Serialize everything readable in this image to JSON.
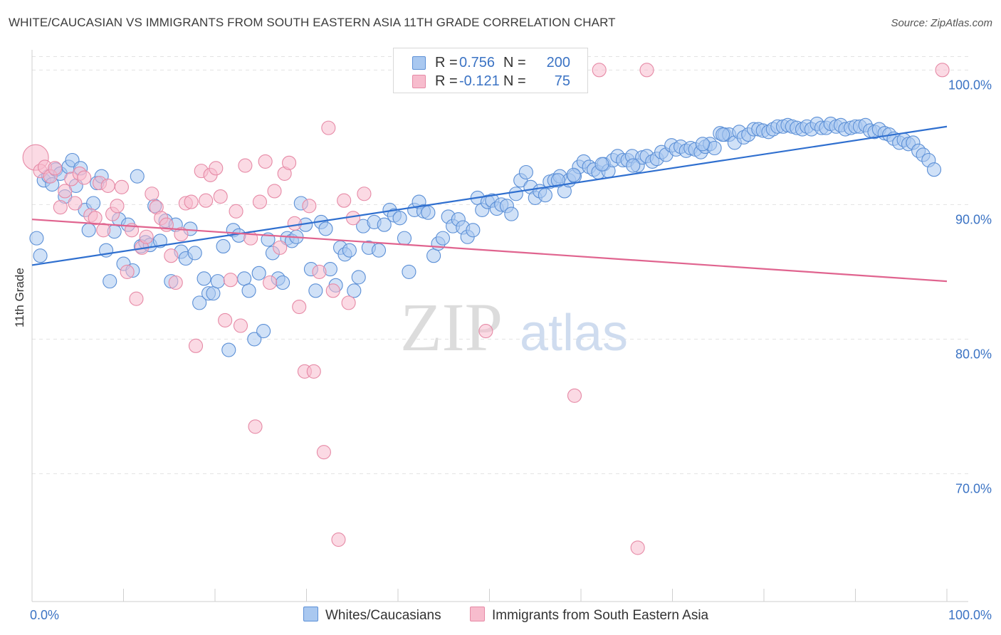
{
  "title": "WHITE/CAUCASIAN VS IMMIGRANTS FROM SOUTH EASTERN ASIA 11TH GRADE CORRELATION CHART",
  "source": "Source: ZipAtlas.com",
  "watermark": {
    "zip": "ZIP",
    "atlas": "atlas"
  },
  "legend": {
    "series": [
      {
        "r_label": "R =",
        "r_value": "0.756",
        "n_label": "N =",
        "n_value": "200",
        "color": "#a9c8f0",
        "edge": "#5b8fd6"
      },
      {
        "r_label": "R =",
        "r_value": "-0.121",
        "n_label": "N =",
        "n_value": "75",
        "color": "#f7bccd",
        "edge": "#e68aa6"
      }
    ]
  },
  "chart_data": {
    "type": "scatter",
    "title": "WHITE/CAUCASIAN VS IMMIGRANTS FROM SOUTH EASTERN ASIA 11TH GRADE CORRELATION CHART",
    "xlabel": "",
    "ylabel": "11th Grade",
    "xlim": [
      0,
      100
    ],
    "ylim": [
      60.5,
      101.5
    ],
    "x_tick_labels": [
      "0.0%",
      "100.0%"
    ],
    "y_ticks": [
      70,
      80,
      90,
      100
    ],
    "y_tick_labels": [
      "70.0%",
      "80.0%",
      "90.0%",
      "100.0%"
    ],
    "grid": true,
    "legend_position": "top-center",
    "series": [
      {
        "name": "Whites/Caucasians",
        "color": "#a9c8f0",
        "edge": "#5b8fd6",
        "line_color": "#2f6fcf",
        "trend": [
          [
            0,
            85.5
          ],
          [
            100,
            95.8
          ]
        ],
        "points": [
          [
            0.5,
            87.5
          ],
          [
            0.9,
            86.2
          ],
          [
            1.3,
            91.8
          ],
          [
            1.8,
            92.1
          ],
          [
            2.2,
            91.5
          ],
          [
            2.6,
            92.6
          ],
          [
            3.1,
            92.3
          ],
          [
            3.6,
            90.6
          ],
          [
            4.0,
            92.8
          ],
          [
            4.4,
            93.3
          ],
          [
            4.8,
            91.4
          ],
          [
            5.3,
            92.7
          ],
          [
            5.8,
            89.6
          ],
          [
            6.2,
            88.1
          ],
          [
            6.7,
            90.1
          ],
          [
            7.1,
            91.6
          ],
          [
            7.6,
            92.1
          ],
          [
            8.1,
            86.6
          ],
          [
            8.5,
            84.3
          ],
          [
            9.0,
            88.0
          ],
          [
            9.5,
            88.9
          ],
          [
            10.0,
            85.6
          ],
          [
            10.5,
            88.5
          ],
          [
            11.0,
            85.1
          ],
          [
            11.5,
            92.1
          ],
          [
            11.9,
            86.9
          ],
          [
            12.4,
            87.2
          ],
          [
            12.9,
            87.0
          ],
          [
            13.4,
            89.9
          ],
          [
            14.0,
            87.3
          ],
          [
            14.6,
            88.8
          ],
          [
            15.2,
            84.3
          ],
          [
            15.7,
            88.5
          ],
          [
            16.3,
            86.5
          ],
          [
            16.8,
            86.0
          ],
          [
            17.3,
            88.2
          ],
          [
            17.8,
            86.4
          ],
          [
            18.3,
            82.7
          ],
          [
            18.8,
            84.5
          ],
          [
            19.3,
            83.4
          ],
          [
            19.8,
            83.4
          ],
          [
            20.3,
            84.3
          ],
          [
            20.9,
            86.9
          ],
          [
            21.5,
            79.2
          ],
          [
            22.0,
            88.1
          ],
          [
            22.6,
            87.7
          ],
          [
            23.2,
            84.5
          ],
          [
            23.7,
            83.6
          ],
          [
            24.3,
            80.0
          ],
          [
            24.8,
            84.9
          ],
          [
            25.3,
            80.6
          ],
          [
            25.8,
            87.4
          ],
          [
            26.3,
            86.4
          ],
          [
            26.9,
            84.5
          ],
          [
            27.4,
            84.2
          ],
          [
            27.9,
            87.5
          ],
          [
            28.4,
            87.3
          ],
          [
            28.9,
            87.6
          ],
          [
            29.4,
            90.1
          ],
          [
            29.9,
            88.5
          ],
          [
            30.5,
            85.2
          ],
          [
            31.0,
            83.6
          ],
          [
            31.6,
            88.7
          ],
          [
            32.1,
            88.2
          ],
          [
            32.6,
            85.2
          ],
          [
            33.2,
            84.0
          ],
          [
            33.7,
            86.8
          ],
          [
            34.2,
            86.3
          ],
          [
            34.7,
            86.6
          ],
          [
            35.2,
            83.6
          ],
          [
            35.7,
            84.6
          ],
          [
            36.2,
            88.4
          ],
          [
            36.8,
            86.8
          ],
          [
            37.4,
            88.7
          ],
          [
            37.9,
            86.6
          ],
          [
            38.5,
            88.5
          ],
          [
            39.1,
            89.6
          ],
          [
            39.6,
            89.2
          ],
          [
            40.2,
            89.0
          ],
          [
            40.7,
            87.5
          ],
          [
            41.2,
            85.0
          ],
          [
            41.8,
            89.6
          ],
          [
            42.3,
            90.2
          ],
          [
            42.8,
            89.5
          ],
          [
            43.3,
            89.4
          ],
          [
            43.9,
            86.2
          ],
          [
            44.4,
            87.1
          ],
          [
            44.9,
            87.5
          ],
          [
            45.5,
            89.1
          ],
          [
            46.0,
            88.4
          ],
          [
            46.6,
            88.9
          ],
          [
            47.1,
            88.3
          ],
          [
            47.6,
            87.6
          ],
          [
            48.2,
            88.1
          ],
          [
            48.7,
            90.5
          ],
          [
            49.2,
            89.6
          ],
          [
            49.8,
            90.2
          ],
          [
            50.3,
            90.3
          ],
          [
            50.8,
            89.7
          ],
          [
            51.3,
            90.0
          ],
          [
            51.9,
            89.9
          ],
          [
            52.4,
            89.3
          ],
          [
            52.9,
            90.8
          ],
          [
            53.4,
            91.8
          ],
          [
            54.0,
            92.4
          ],
          [
            54.5,
            91.3
          ],
          [
            55.0,
            90.5
          ],
          [
            55.5,
            91.0
          ],
          [
            56.1,
            90.7
          ],
          [
            56.6,
            91.7
          ],
          [
            57.1,
            91.8
          ],
          [
            57.7,
            92.1
          ],
          [
            58.2,
            91.0
          ],
          [
            58.7,
            91.8
          ],
          [
            59.3,
            92.1
          ],
          [
            59.8,
            92.8
          ],
          [
            60.3,
            93.2
          ],
          [
            60.9,
            92.8
          ],
          [
            61.4,
            92.6
          ],
          [
            61.9,
            92.4
          ],
          [
            62.5,
            93.0
          ],
          [
            63.0,
            92.5
          ],
          [
            63.5,
            93.3
          ],
          [
            64.0,
            93.6
          ],
          [
            64.6,
            93.3
          ],
          [
            65.1,
            93.3
          ],
          [
            65.6,
            93.6
          ],
          [
            66.2,
            92.9
          ],
          [
            66.7,
            93.5
          ],
          [
            67.2,
            93.6
          ],
          [
            67.8,
            93.2
          ],
          [
            68.3,
            93.4
          ],
          [
            68.8,
            93.9
          ],
          [
            69.3,
            93.7
          ],
          [
            69.9,
            94.4
          ],
          [
            70.4,
            94.1
          ],
          [
            70.9,
            94.3
          ],
          [
            71.5,
            94.0
          ],
          [
            72.0,
            94.2
          ],
          [
            72.5,
            94.1
          ],
          [
            73.1,
            93.9
          ],
          [
            73.6,
            94.3
          ],
          [
            74.1,
            94.5
          ],
          [
            74.6,
            94.2
          ],
          [
            75.2,
            95.3
          ],
          [
            75.7,
            95.2
          ],
          [
            76.2,
            95.2
          ],
          [
            76.8,
            94.6
          ],
          [
            77.3,
            95.4
          ],
          [
            77.8,
            95.0
          ],
          [
            78.3,
            95.2
          ],
          [
            78.9,
            95.6
          ],
          [
            79.4,
            95.6
          ],
          [
            79.9,
            95.5
          ],
          [
            80.5,
            95.4
          ],
          [
            81.0,
            95.6
          ],
          [
            81.5,
            95.8
          ],
          [
            82.1,
            95.8
          ],
          [
            82.6,
            95.9
          ],
          [
            83.1,
            95.8
          ],
          [
            83.6,
            95.7
          ],
          [
            84.2,
            95.6
          ],
          [
            84.7,
            95.8
          ],
          [
            85.2,
            95.6
          ],
          [
            85.8,
            96.0
          ],
          [
            86.3,
            95.7
          ],
          [
            86.8,
            95.7
          ],
          [
            87.3,
            96.0
          ],
          [
            87.9,
            95.8
          ],
          [
            88.4,
            95.9
          ],
          [
            88.9,
            95.6
          ],
          [
            89.5,
            95.7
          ],
          [
            90.0,
            95.8
          ],
          [
            90.5,
            95.8
          ],
          [
            91.1,
            95.9
          ],
          [
            91.6,
            95.5
          ],
          [
            92.1,
            95.4
          ],
          [
            92.6,
            95.6
          ],
          [
            93.2,
            95.3
          ],
          [
            93.7,
            95.2
          ],
          [
            94.2,
            94.9
          ],
          [
            94.8,
            94.6
          ],
          [
            95.3,
            94.8
          ],
          [
            95.8,
            94.5
          ],
          [
            96.3,
            94.6
          ],
          [
            96.9,
            94.0
          ],
          [
            97.4,
            93.7
          ],
          [
            98.0,
            93.3
          ],
          [
            98.6,
            92.6
          ],
          [
            75.5,
            95.2
          ],
          [
            73.3,
            94.5
          ],
          [
            65.7,
            92.9
          ],
          [
            62.3,
            93.0
          ],
          [
            57.5,
            91.8
          ],
          [
            59.2,
            92.2
          ]
        ]
      },
      {
        "name": "Immigrants from South Eastern Asia",
        "color": "#f7bccd",
        "edge": "#e68aa6",
        "line_color": "#e0648f",
        "trend": [
          [
            0,
            88.9
          ],
          [
            100,
            84.3
          ]
        ],
        "points": [
          [
            0.4,
            93.5
          ],
          [
            0.9,
            92.5
          ],
          [
            1.4,
            92.8
          ],
          [
            2.0,
            92.1
          ],
          [
            2.5,
            92.7
          ],
          [
            3.1,
            89.8
          ],
          [
            3.6,
            91.0
          ],
          [
            4.3,
            91.9
          ],
          [
            4.7,
            90.1
          ],
          [
            5.2,
            92.3
          ],
          [
            5.7,
            92.0
          ],
          [
            6.4,
            89.2
          ],
          [
            6.9,
            89.0
          ],
          [
            7.4,
            91.6
          ],
          [
            7.8,
            88.1
          ],
          [
            8.3,
            91.4
          ],
          [
            8.8,
            89.3
          ],
          [
            9.3,
            89.9
          ],
          [
            9.8,
            91.3
          ],
          [
            10.4,
            85.0
          ],
          [
            10.9,
            88.1
          ],
          [
            11.4,
            83.0
          ],
          [
            12.0,
            86.8
          ],
          [
            12.5,
            87.6
          ],
          [
            13.1,
            90.8
          ],
          [
            13.6,
            89.8
          ],
          [
            14.1,
            89.0
          ],
          [
            14.7,
            88.5
          ],
          [
            15.2,
            86.2
          ],
          [
            15.7,
            84.2
          ],
          [
            16.3,
            87.8
          ],
          [
            16.8,
            90.1
          ],
          [
            17.4,
            90.2
          ],
          [
            17.9,
            79.5
          ],
          [
            18.5,
            92.5
          ],
          [
            19.0,
            90.3
          ],
          [
            19.5,
            92.2
          ],
          [
            20.1,
            92.7
          ],
          [
            20.6,
            90.6
          ],
          [
            21.1,
            81.4
          ],
          [
            21.7,
            84.4
          ],
          [
            22.3,
            89.5
          ],
          [
            22.8,
            81.0
          ],
          [
            23.3,
            92.9
          ],
          [
            23.9,
            87.5
          ],
          [
            24.4,
            73.5
          ],
          [
            24.9,
            90.2
          ],
          [
            25.5,
            93.2
          ],
          [
            26.0,
            84.2
          ],
          [
            26.5,
            91.0
          ],
          [
            27.1,
            86.8
          ],
          [
            27.6,
            92.3
          ],
          [
            28.1,
            93.1
          ],
          [
            28.7,
            88.6
          ],
          [
            29.2,
            82.4
          ],
          [
            29.8,
            77.6
          ],
          [
            30.3,
            89.9
          ],
          [
            30.8,
            77.6
          ],
          [
            31.4,
            85.0
          ],
          [
            31.9,
            71.6
          ],
          [
            32.4,
            95.7
          ],
          [
            32.9,
            83.6
          ],
          [
            33.5,
            65.1
          ],
          [
            34.1,
            90.3
          ],
          [
            34.6,
            82.7
          ],
          [
            35.1,
            89.0
          ],
          [
            36.3,
            90.8
          ],
          [
            49.6,
            80.6
          ],
          [
            59.3,
            75.8
          ],
          [
            62.0,
            100.0
          ],
          [
            66.2,
            64.5
          ],
          [
            67.2,
            100.0
          ],
          [
            99.5,
            100.0
          ]
        ]
      }
    ]
  },
  "bottom_legend": [
    {
      "label": "Whites/Caucasians"
    },
    {
      "label": "Immigrants from South Eastern Asia"
    }
  ]
}
